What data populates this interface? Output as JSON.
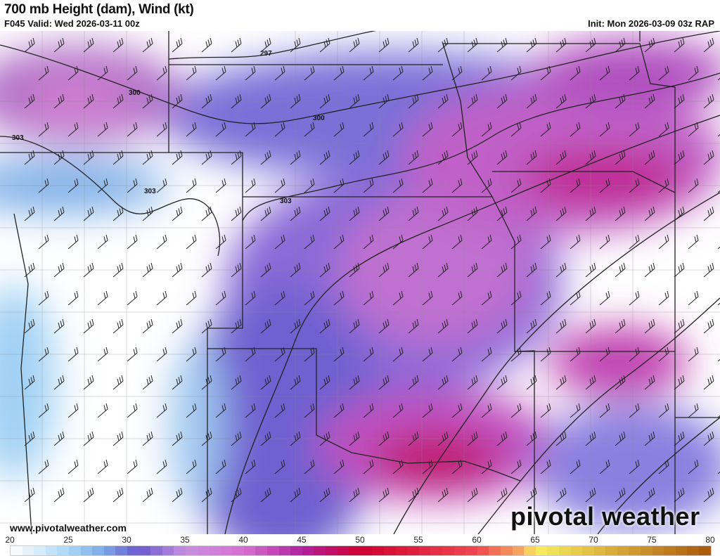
{
  "header": {
    "title": "700 mb Height (dam), Wind (kt)",
    "valid": "F045 Valid: Wed 2026-03-11 00z",
    "init": "Init: Mon 2026-03-09 03z RAP"
  },
  "map": {
    "contour_labels": [
      "297",
      "300",
      "300",
      "303",
      "303",
      "303"
    ],
    "website": "www.pivotalweather.com",
    "brand": "pivotal weather"
  },
  "colorbar": {
    "min": 20,
    "max": 80,
    "ticks": [
      "20",
      "25",
      "30",
      "35",
      "40",
      "45",
      "50",
      "55",
      "60",
      "65",
      "70",
      "75",
      "80"
    ],
    "stops": [
      {
        "v": 20,
        "c": "#ffffff"
      },
      {
        "v": 25,
        "c": "#a8d8f8"
      },
      {
        "v": 28,
        "c": "#7aa8e8"
      },
      {
        "v": 31,
        "c": "#6a58d0"
      },
      {
        "v": 35,
        "c": "#c890e0"
      },
      {
        "v": 40,
        "c": "#d870d0"
      },
      {
        "v": 45,
        "c": "#b020a0"
      },
      {
        "v": 50,
        "c": "#d00030"
      },
      {
        "v": 60,
        "c": "#f04850"
      },
      {
        "v": 64,
        "c": "#f8b060"
      },
      {
        "v": 65,
        "c": "#f8f060"
      },
      {
        "v": 72,
        "c": "#d8a838"
      },
      {
        "v": 80,
        "c": "#a85808"
      }
    ]
  }
}
